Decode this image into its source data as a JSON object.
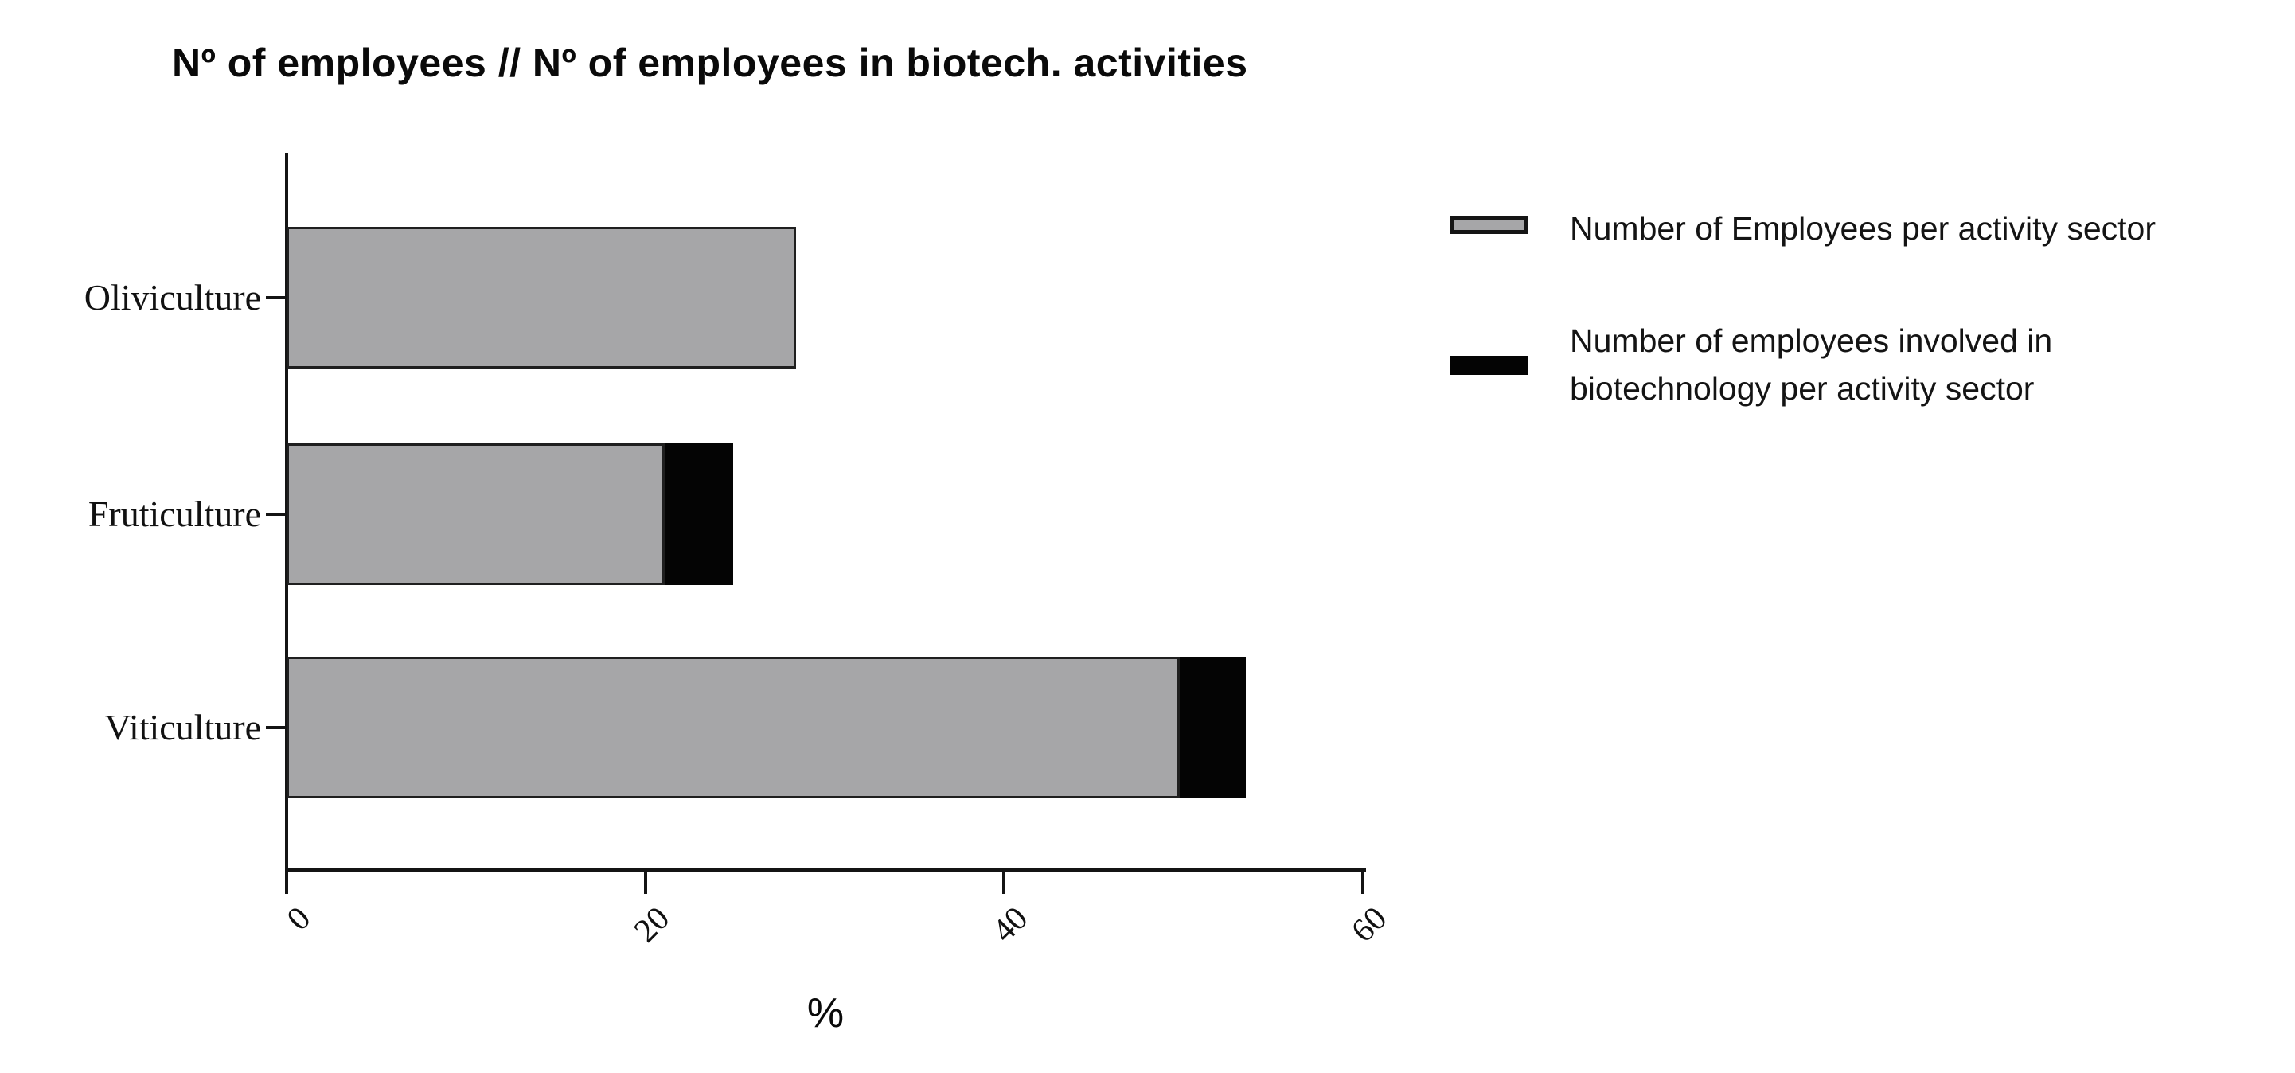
{
  "title": "Nº of employees // Nº of employees in biotech. activities",
  "legend": {
    "items": [
      {
        "label": "Number of Employees per activity sector",
        "color": "#a6a6a8",
        "swatch": "gray-outlined-bar"
      },
      {
        "label": "Number of employees involved in biotechnology per activity sector",
        "color": "#040404",
        "swatch": "black-bar"
      }
    ]
  },
  "chart_data": {
    "type": "bar",
    "orientation": "horizontal",
    "stacked": true,
    "title": "Nº of employees // Nº of employees in biotech. activities",
    "categories": [
      "Oliviculture",
      "Fruticulture",
      "Viticulture"
    ],
    "series": [
      {
        "name": "Number of Employees per activity sector",
        "color": "#a6a6a8",
        "values": [
          28.4,
          21.1,
          49.8
        ]
      },
      {
        "name": "Number of employees involved in biotechnology per activity sector",
        "color": "#040404",
        "values": [
          0,
          3.8,
          3.7
        ]
      }
    ],
    "stacked_totals": [
      28.4,
      24.9,
      53.5
    ],
    "xlabel": "%",
    "ylabel": "",
    "xlim": [
      0,
      60
    ],
    "xticks": [
      0,
      20,
      40,
      60
    ],
    "xtick_label_rotation_deg": -45,
    "grid": false,
    "legend_position": "right-of-plot"
  }
}
